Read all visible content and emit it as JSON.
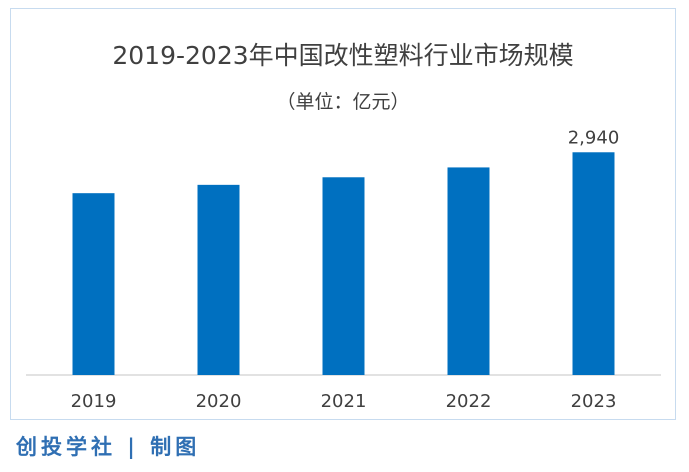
{
  "chart_data": {
    "type": "bar",
    "title": "2019-2023年中国改性塑料行业市场规模",
    "subtitle": "（单位：亿元）",
    "categories": [
      "2019",
      "2020",
      "2021",
      "2022",
      "2023"
    ],
    "values": [
      2400,
      2510,
      2610,
      2740,
      2940
    ],
    "data_labels": [
      null,
      null,
      null,
      null,
      "2,940"
    ],
    "ylim": [
      0,
      3300
    ],
    "xlabel": "",
    "ylabel": "",
    "grid": false,
    "bar_color": "#0070c0"
  },
  "footer": {
    "credit": "创投学社 | 制图"
  },
  "colors": {
    "bar": "#0070c0",
    "credit": "#2f6fb3",
    "frame_border": "#c7dbef"
  }
}
